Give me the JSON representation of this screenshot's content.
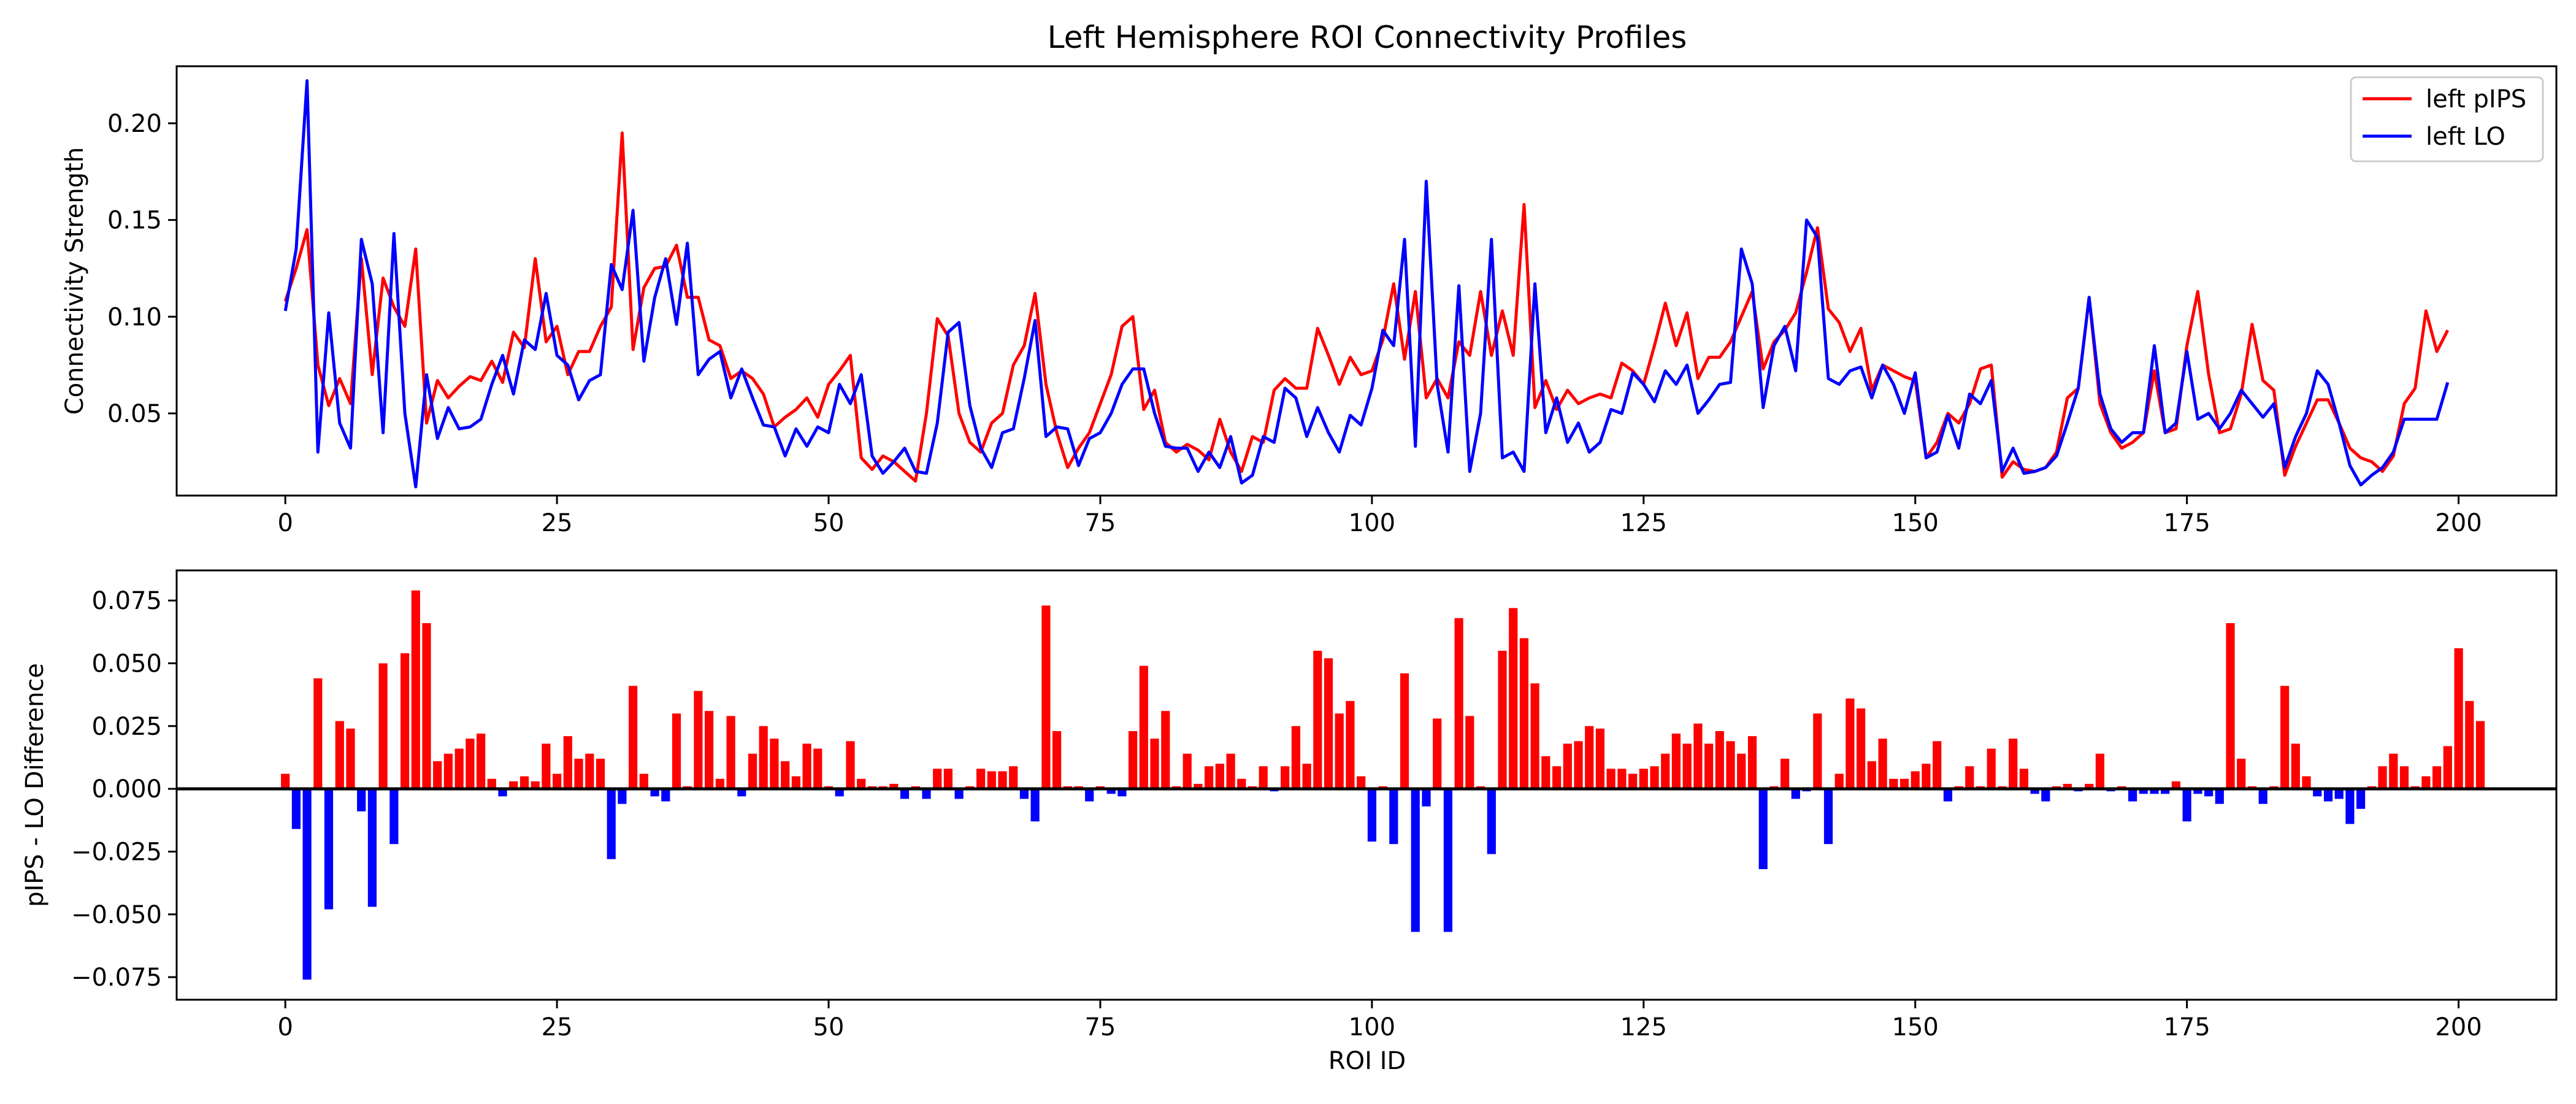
{
  "title": "Left Hemisphere ROI Connectivity Profiles",
  "colors": {
    "pips": "#ff0000",
    "lo": "#0000ff",
    "positive": "#ff0000",
    "negative": "#0000ff",
    "axis": "#000000"
  },
  "chart_data": [
    {
      "type": "line",
      "ylabel": "Connectivity Strength",
      "xlabel": "",
      "xlim": [
        -10,
        209
      ],
      "ylim": [
        0.0075,
        0.2295
      ],
      "xticks": [
        0,
        25,
        50,
        75,
        100,
        125,
        150,
        175,
        200
      ],
      "yticks": [
        0.05,
        0.1,
        0.15,
        0.2
      ],
      "ytick_labels": [
        "0.05",
        "0.10",
        "0.15",
        "0.20"
      ],
      "grid": false,
      "legend_position": "top-right",
      "series": [
        {
          "name": "left pIPS",
          "color": "#ff0000",
          "values": [
            0.108,
            0.125,
            0.145,
            0.075,
            0.054,
            0.068,
            0.055,
            0.13,
            0.07,
            0.12,
            0.105,
            0.095,
            0.135,
            0.045,
            0.067,
            0.058,
            0.064,
            0.069,
            0.067,
            0.077,
            0.066,
            0.092,
            0.084,
            0.13,
            0.087,
            0.095,
            0.07,
            0.082,
            0.082,
            0.095,
            0.105,
            0.195,
            0.083,
            0.115,
            0.125,
            0.126,
            0.137,
            0.11,
            0.11,
            0.088,
            0.085,
            0.068,
            0.072,
            0.068,
            0.06,
            0.043,
            0.048,
            0.052,
            0.058,
            0.048,
            0.065,
            0.072,
            0.08,
            0.027,
            0.021,
            0.028,
            0.025,
            0.02,
            0.015,
            0.05,
            0.099,
            0.09,
            0.05,
            0.035,
            0.03,
            0.045,
            0.05,
            0.075,
            0.085,
            0.112,
            0.065,
            0.04,
            0.022,
            0.032,
            0.04,
            0.055,
            0.07,
            0.095,
            0.1,
            0.052,
            0.062,
            0.035,
            0.03,
            0.034,
            0.031,
            0.026,
            0.047,
            0.03,
            0.02,
            0.038,
            0.035,
            0.062,
            0.068,
            0.063,
            0.063,
            0.094,
            0.08,
            0.065,
            0.079,
            0.07,
            0.072,
            0.088,
            0.117,
            0.078,
            0.113,
            0.058,
            0.068,
            0.058,
            0.087,
            0.08,
            0.113,
            0.08,
            0.103,
            0.08,
            0.158,
            0.053,
            0.067,
            0.052,
            0.062,
            0.055,
            0.058,
            0.06,
            0.058,
            0.076,
            0.072,
            0.065,
            0.085,
            0.107,
            0.085,
            0.102,
            0.068,
            0.079,
            0.079,
            0.087,
            0.1,
            0.113,
            0.073,
            0.087,
            0.093,
            0.102,
            0.123,
            0.146,
            0.104,
            0.097,
            0.082,
            0.094,
            0.062,
            0.075,
            0.072,
            0.069,
            0.067,
            0.027,
            0.035,
            0.05,
            0.045,
            0.055,
            0.073,
            0.075,
            0.017,
            0.025,
            0.021,
            0.02,
            0.022,
            0.03,
            0.058,
            0.063,
            0.11,
            0.055,
            0.04,
            0.032,
            0.035,
            0.04,
            0.072,
            0.04,
            0.042,
            0.085,
            0.113,
            0.07,
            0.04,
            0.042,
            0.06,
            0.096,
            0.067,
            0.062,
            0.018,
            0.033,
            0.045,
            0.057,
            0.057,
            0.045,
            0.032,
            0.027,
            0.025,
            0.02,
            0.028,
            0.055,
            0.063,
            0.103,
            0.082,
            0.093
          ]
        },
        {
          "name": "left LO",
          "color": "#0000ff",
          "values": [
            0.103,
            0.135,
            0.222,
            0.03,
            0.102,
            0.045,
            0.032,
            0.14,
            0.117,
            0.04,
            0.143,
            0.05,
            0.012,
            0.07,
            0.037,
            0.053,
            0.042,
            0.043,
            0.047,
            0.065,
            0.08,
            0.06,
            0.088,
            0.083,
            0.112,
            0.08,
            0.075,
            0.057,
            0.067,
            0.07,
            0.127,
            0.114,
            0.155,
            0.077,
            0.11,
            0.13,
            0.096,
            0.138,
            0.07,
            0.078,
            0.082,
            0.058,
            0.073,
            0.058,
            0.044,
            0.043,
            0.028,
            0.042,
            0.033,
            0.043,
            0.04,
            0.065,
            0.055,
            0.07,
            0.028,
            0.019,
            0.025,
            0.032,
            0.02,
            0.019,
            0.045,
            0.092,
            0.097,
            0.054,
            0.032,
            0.022,
            0.04,
            0.042,
            0.068,
            0.098,
            0.038,
            0.043,
            0.042,
            0.023,
            0.037,
            0.04,
            0.05,
            0.065,
            0.073,
            0.073,
            0.05,
            0.033,
            0.032,
            0.032,
            0.02,
            0.03,
            0.022,
            0.038,
            0.014,
            0.018,
            0.038,
            0.035,
            0.063,
            0.058,
            0.038,
            0.053,
            0.04,
            0.03,
            0.049,
            0.044,
            0.063,
            0.093,
            0.085,
            0.14,
            0.033,
            0.17,
            0.065,
            0.03,
            0.116,
            0.02,
            0.05,
            0.14,
            0.027,
            0.03,
            0.02,
            0.117,
            0.04,
            0.058,
            0.035,
            0.045,
            0.03,
            0.035,
            0.052,
            0.05,
            0.071,
            0.065,
            0.056,
            0.072,
            0.065,
            0.075,
            0.05,
            0.057,
            0.065,
            0.066,
            0.135,
            0.117,
            0.053,
            0.085,
            0.095,
            0.072,
            0.15,
            0.141,
            0.068,
            0.065,
            0.072,
            0.074,
            0.058,
            0.075,
            0.065,
            0.05,
            0.071,
            0.027,
            0.03,
            0.049,
            0.032,
            0.06,
            0.055,
            0.067,
            0.02,
            0.032,
            0.019,
            0.02,
            0.022,
            0.028,
            0.045,
            0.063,
            0.11,
            0.06,
            0.042,
            0.035,
            0.04,
            0.04,
            0.085,
            0.04,
            0.045,
            0.082,
            0.047,
            0.05,
            0.042,
            0.05,
            0.062,
            0.055,
            0.048,
            0.055,
            0.022,
            0.038,
            0.05,
            0.072,
            0.065,
            0.045,
            0.023,
            0.013,
            0.018,
            0.022,
            0.03,
            0.047,
            0.047,
            0.047,
            0.047,
            0.066
          ]
        }
      ]
    },
    {
      "type": "bar",
      "ylabel": "pIPS - LO Difference",
      "xlabel": "ROI ID",
      "xlim": [
        -10,
        209
      ],
      "ylim": [
        -0.084,
        0.087
      ],
      "xticks": [
        0,
        25,
        50,
        75,
        100,
        125,
        150,
        175,
        200
      ],
      "yticks": [
        -0.075,
        -0.05,
        -0.025,
        0.0,
        0.025,
        0.05,
        0.075
      ],
      "ytick_labels": [
        "−0.075",
        "−0.050",
        "−0.025",
        "0.000",
        "0.025",
        "0.050",
        "0.075"
      ],
      "grid": false,
      "baseline": 0,
      "values": [
        0.006,
        -0.016,
        -0.076,
        0.044,
        -0.048,
        0.027,
        0.024,
        -0.009,
        -0.047,
        0.05,
        -0.022,
        0.054,
        0.079,
        0.066,
        0.011,
        0.014,
        0.016,
        0.02,
        0.022,
        0.004,
        -0.003,
        0.003,
        0.005,
        0.003,
        0.018,
        0.006,
        0.021,
        0.012,
        0.014,
        0.012,
        -0.028,
        -0.006,
        0.041,
        0.006,
        -0.003,
        -0.005,
        0.03,
        0.001,
        0.039,
        0.031,
        0.004,
        0.029,
        -0.003,
        0.014,
        0.025,
        0.02,
        0.011,
        0.005,
        0.018,
        0.016,
        0.001,
        -0.003,
        0.019,
        0.004,
        0.001,
        0.001,
        0.002,
        -0.004,
        0.001,
        -0.004,
        0.008,
        0.008,
        -0.004,
        0.001,
        0.008,
        0.007,
        0.007,
        0.009,
        -0.004,
        -0.013,
        0.073,
        0.023,
        0.001,
        0.001,
        -0.005,
        0.001,
        -0.002,
        -0.003,
        0.023,
        0.049,
        0.02,
        0.031,
        0.001,
        0.014,
        0.002,
        0.009,
        0.01,
        0.014,
        0.004,
        0.001,
        0.009,
        -0.001,
        0.009,
        0.025,
        0.01,
        0.055,
        0.052,
        0.03,
        0.035,
        0.005,
        -0.021,
        0.001,
        -0.022,
        0.046,
        -0.057,
        -0.007,
        0.028,
        -0.057,
        0.068,
        0.029,
        0.001,
        -0.026,
        0.055,
        0.072,
        0.06,
        0.042,
        0.013,
        0.009,
        0.018,
        0.019,
        0.025,
        0.024,
        0.008,
        0.008,
        0.006,
        0.008,
        0.009,
        0.014,
        0.022,
        0.018,
        0.026,
        0.018,
        0.023,
        0.019,
        0.014,
        0.021,
        -0.032,
        0.001,
        0.012,
        -0.004,
        -0.001,
        0.03,
        -0.022,
        0.006,
        0.036,
        0.032,
        0.011,
        0.02,
        0.004,
        0.004,
        0.007,
        0.01,
        0.019,
        -0.005,
        0.001,
        0.009,
        0.001,
        0.016,
        0.001,
        0.02,
        0.008,
        -0.002,
        -0.005,
        0.001,
        0.002,
        -0.001,
        0.002,
        0.014,
        -0.001,
        0.001,
        -0.005,
        -0.002,
        -0.002,
        -0.002,
        0.003,
        -0.013,
        -0.002,
        -0.003,
        -0.006,
        0.066,
        0.012,
        0.001,
        -0.006,
        0.001,
        0.041,
        0.018,
        0.005,
        -0.003,
        -0.005,
        -0.004,
        -0.014,
        -0.008,
        0.001,
        0.009,
        0.014,
        0.009,
        0.001,
        0.005,
        0.009,
        0.017,
        0.056,
        0.035,
        0.027
      ]
    }
  ]
}
